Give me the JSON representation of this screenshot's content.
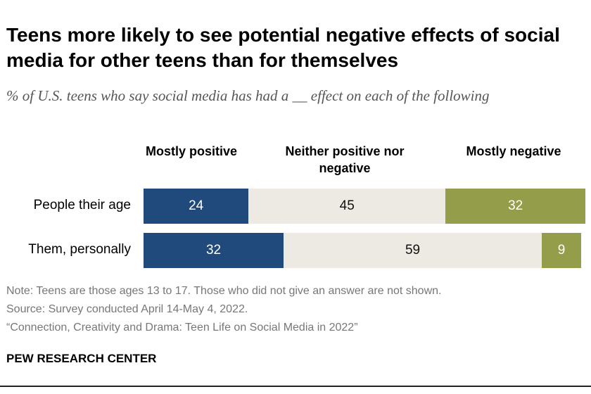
{
  "title": "Teens more likely to see potential negative effects of social media for other teens than for themselves",
  "subtitle": "% of U.S. teens who say social media has had a __ effect on each of the following",
  "chart_data": {
    "type": "bar",
    "orientation": "horizontal",
    "stacked": true,
    "categories": [
      "People their age",
      "Them, personally"
    ],
    "series": [
      {
        "name": "Mostly positive",
        "values": [
          24,
          32
        ],
        "color": "#204a7b"
      },
      {
        "name": "Neither positive nor negative",
        "values": [
          45,
          59
        ],
        "color": "#edeae3"
      },
      {
        "name": "Mostly negative",
        "values": [
          32,
          9
        ],
        "color": "#949e4a"
      }
    ]
  },
  "notes": [
    "Note: Teens are those ages 13 to 17. Those who did not give an answer are not shown.",
    "Source: Survey conducted April 14-May 4, 2022.",
    "“Connection, Creativity and Drama: Teen Life on Social Media in 2022”"
  ],
  "brand": "PEW RESEARCH CENTER"
}
